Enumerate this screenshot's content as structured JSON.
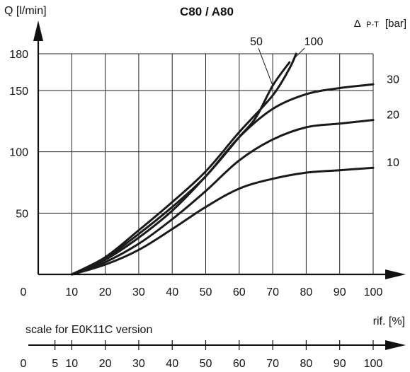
{
  "chart_data": {
    "type": "line",
    "title": "C80 / A80",
    "ylabel": "Q [l/min]",
    "xlabel": "rif. [%]",
    "legend_title_prefix": "Δ",
    "legend_title_sub": "P-T",
    "legend_title_unit": "[bar]",
    "origin_label": "0",
    "xlim": [
      0,
      100
    ],
    "ylim": [
      0,
      180
    ],
    "x_ticks": [
      10,
      20,
      30,
      40,
      50,
      60,
      70,
      80,
      90,
      100
    ],
    "y_ticks": [
      50,
      100,
      150,
      180
    ],
    "grid": true,
    "series": [
      {
        "name": "10",
        "x": [
          10,
          20,
          30,
          40,
          50,
          60,
          70,
          80,
          90,
          100
        ],
        "y": [
          0,
          8,
          20,
          37,
          55,
          70,
          78,
          83,
          85,
          87
        ]
      },
      {
        "name": "20",
        "x": [
          10,
          20,
          30,
          40,
          50,
          60,
          70,
          80,
          90,
          100
        ],
        "y": [
          0,
          10,
          25,
          45,
          68,
          93,
          110,
          120,
          123,
          126
        ]
      },
      {
        "name": "30",
        "x": [
          10,
          20,
          30,
          40,
          50,
          60,
          70,
          80,
          90,
          100
        ],
        "y": [
          0,
          12,
          30,
          52,
          80,
          112,
          135,
          147,
          152,
          155
        ]
      },
      {
        "name": "50",
        "x": [
          10,
          20,
          30,
          40,
          50,
          60,
          65,
          70,
          75
        ],
        "y": [
          0,
          13,
          33,
          55,
          80,
          112,
          128,
          154,
          173
        ]
      },
      {
        "name": "100",
        "x": [
          10,
          20,
          30,
          40,
          50,
          60,
          70,
          75,
          77
        ],
        "y": [
          0,
          14,
          36,
          59,
          84,
          116,
          146,
          168,
          180
        ]
      }
    ],
    "secondary_axis": {
      "label": "scale for E0K11C version",
      "origin_label": "0",
      "ticks": [
        5,
        10,
        20,
        30,
        40,
        50,
        60,
        70,
        80,
        90,
        100
      ]
    }
  }
}
